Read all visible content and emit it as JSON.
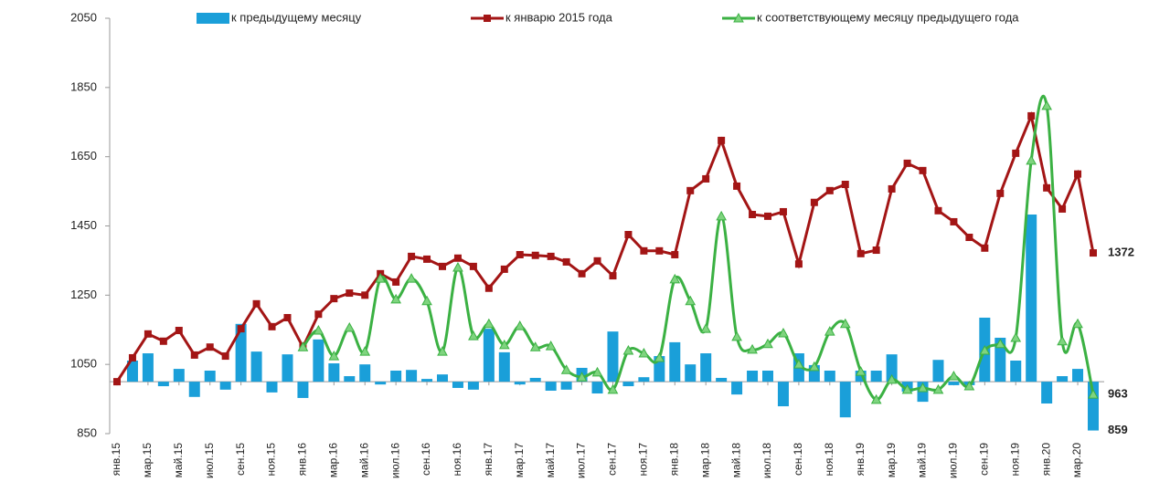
{
  "chart_data": {
    "type": "bar_line",
    "categories": [
      "янв.15",
      null,
      "мар.15",
      null,
      "май.15",
      null,
      "июл.15",
      null,
      "сен.15",
      null,
      "ноя.15",
      null,
      "янв.16",
      null,
      "мар.16",
      null,
      "май.16",
      null,
      "июл.16",
      null,
      "сен.16",
      null,
      "ноя.16",
      null,
      "янв.17",
      null,
      "мар.17",
      null,
      "май.17",
      null,
      "июл.17",
      null,
      "сен.17",
      null,
      "ноя.17",
      null,
      "янв.18",
      null,
      "мар.18",
      null,
      "май.18",
      null,
      "июл.18",
      null,
      "сен.18",
      null,
      "ноя.18",
      null,
      "янв.19",
      null,
      "мар.19",
      null,
      "май.19",
      null,
      "июл.19",
      null,
      "сен.19",
      null,
      "ноя.19",
      null,
      "янв.20",
      null,
      "мар.20",
      null
    ],
    "ylim": [
      850,
      2050
    ],
    "yticks": [
      850,
      1050,
      1250,
      1450,
      1650,
      1850,
      2050
    ],
    "bar_base": 1000,
    "series": [
      {
        "name": "к предыдущему месяцу",
        "kind": "bar",
        "color": "#1a9fd9",
        "values": [
          null,
          1061,
          1082,
          987,
          1037,
          956,
          1032,
          977,
          1167,
          1087,
          969,
          1079,
          953,
          1122,
          1053,
          1016,
          1050,
          992,
          1032,
          1034,
          1008,
          1021,
          982,
          977,
          1153,
          1085,
          992,
          1011,
          974,
          977,
          1040,
          966,
          1145,
          987,
          1013,
          1074,
          1114,
          1050,
          1082,
          1011,
          963,
          1032,
          1032,
          929,
          1082,
          1048,
          1032,
          897,
          1032,
          1032,
          1079,
          971,
          942,
          1063,
          990,
          990,
          1185,
          1127,
          1061,
          1483,
          937,
          1016,
          1037,
          859
        ]
      },
      {
        "name": "к январю 2015 года",
        "kind": "line",
        "marker": "square",
        "smooth": false,
        "color": "#a31515",
        "values": [
          1000,
          1069,
          1138,
          1117,
          1148,
          1077,
          1100,
          1074,
          1153,
          1225,
          1159,
          1185,
          1100,
          1195,
          1240,
          1256,
          1250,
          1312,
          1288,
          1362,
          1354,
          1333,
          1357,
          1333,
          1270,
          1325,
          1367,
          1365,
          1362,
          1346,
          1312,
          1349,
          1306,
          1425,
          1378,
          1378,
          1367,
          1552,
          1586,
          1697,
          1565,
          1483,
          1478,
          1491,
          1340,
          1518,
          1552,
          1570,
          1370,
          1380,
          1557,
          1631,
          1610,
          1494,
          1462,
          1417,
          1386,
          1544,
          1660,
          1768,
          1560,
          1499,
          1600,
          1372
        ]
      },
      {
        "name": "к соответствующему месяцу предыдущего года",
        "kind": "line",
        "marker": "triangle",
        "smooth": true,
        "color": "#3bb143",
        "values": [
          null,
          null,
          null,
          null,
          null,
          null,
          null,
          null,
          null,
          null,
          null,
          null,
          1100,
          1148,
          1074,
          1156,
          1087,
          1298,
          1238,
          1298,
          1233,
          1087,
          1330,
          1132,
          1167,
          1106,
          1161,
          1100,
          1103,
          1034,
          1013,
          1027,
          977,
          1090,
          1082,
          1069,
          1296,
          1233,
          1153,
          1478,
          1130,
          1093,
          1109,
          1140,
          1050,
          1043,
          1145,
          1167,
          1029,
          948,
          1006,
          977,
          982,
          977,
          1016,
          987,
          1090,
          1109,
          1127,
          1639,
          1797,
          1117,
          1167,
          963
        ]
      }
    ]
  }
}
